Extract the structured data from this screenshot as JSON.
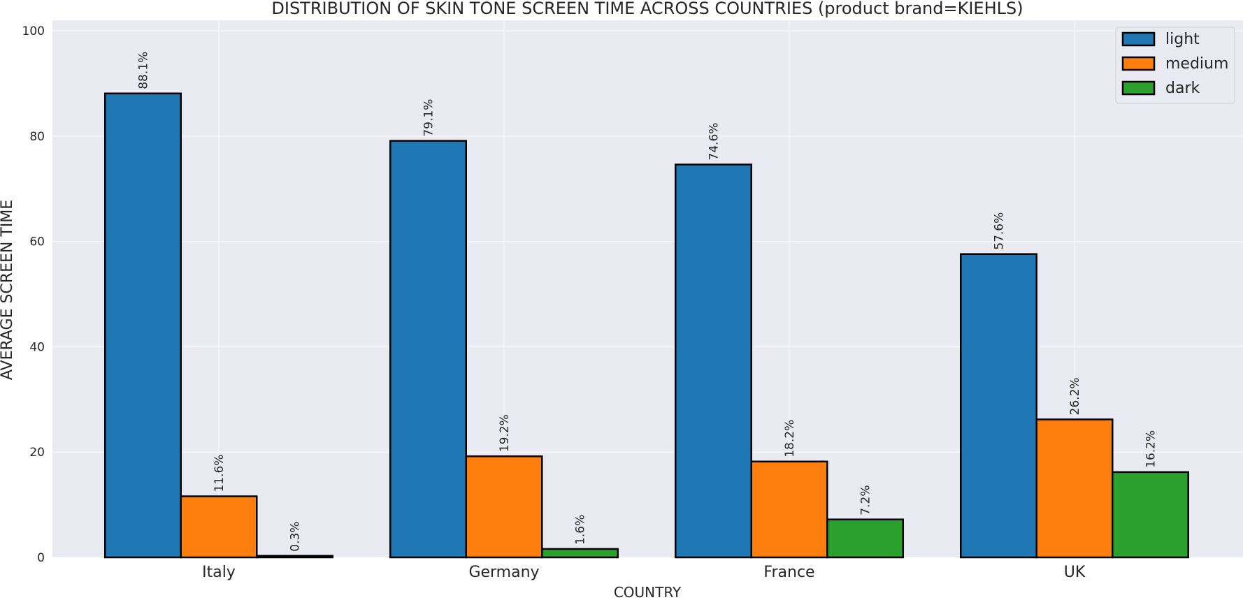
{
  "chart_data": {
    "type": "bar",
    "title": "DISTRIBUTION OF SKIN TONE SCREEN TIME ACROSS COUNTRIES (product brand=KIEHLS)",
    "xlabel": "COUNTRY",
    "ylabel": "AVERAGE SCREEN TIME",
    "categories": [
      "Italy",
      "Germany",
      "France",
      "UK"
    ],
    "ylim": [
      0,
      102
    ],
    "yticks": [
      0,
      20,
      40,
      60,
      80,
      100
    ],
    "grid": true,
    "legend_position": "top-right",
    "series": [
      {
        "name": "light",
        "color": "#1f77b4",
        "values": [
          88.1,
          79.1,
          74.6,
          57.6
        ],
        "labels": [
          "88.1%",
          "79.1%",
          "74.6%",
          "57.6%"
        ]
      },
      {
        "name": "medium",
        "color": "#ff7f0e",
        "values": [
          11.6,
          19.2,
          18.2,
          26.2
        ],
        "labels": [
          "11.6%",
          "19.2%",
          "18.2%",
          "26.2%"
        ]
      },
      {
        "name": "dark",
        "color": "#2ca02c",
        "values": [
          0.3,
          1.6,
          7.2,
          16.2
        ],
        "labels": [
          "0.3%",
          "1.6%",
          "7.2%",
          "16.2%"
        ]
      }
    ]
  }
}
